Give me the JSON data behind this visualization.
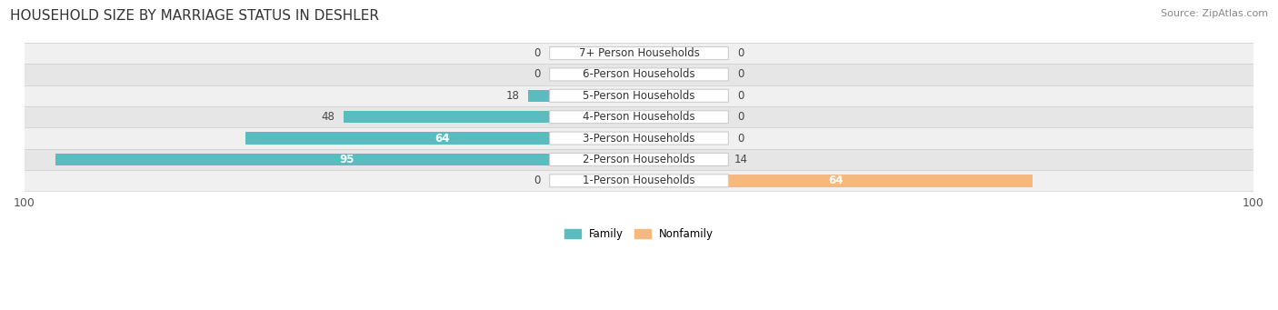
{
  "title": "HOUSEHOLD SIZE BY MARRIAGE STATUS IN DESHLER",
  "source": "Source: ZipAtlas.com",
  "categories": [
    "7+ Person Households",
    "6-Person Households",
    "5-Person Households",
    "4-Person Households",
    "3-Person Households",
    "2-Person Households",
    "1-Person Households"
  ],
  "family_values": [
    0,
    0,
    18,
    48,
    64,
    95,
    0
  ],
  "nonfamily_values": [
    0,
    0,
    0,
    0,
    0,
    14,
    64
  ],
  "family_color": "#5BBCBF",
  "nonfamily_color": "#F5B97F",
  "nonfamily_bg_color": "#F5D9BA",
  "family_bg_color": "#A8D9DA",
  "row_bg_colors": [
    "#F0F0F0",
    "#E6E6E6"
  ],
  "xlim": 100,
  "title_fontsize": 11,
  "label_fontsize": 8.5,
  "tick_fontsize": 9,
  "source_fontsize": 8,
  "bar_height": 0.58,
  "bg_bar_width": 13
}
